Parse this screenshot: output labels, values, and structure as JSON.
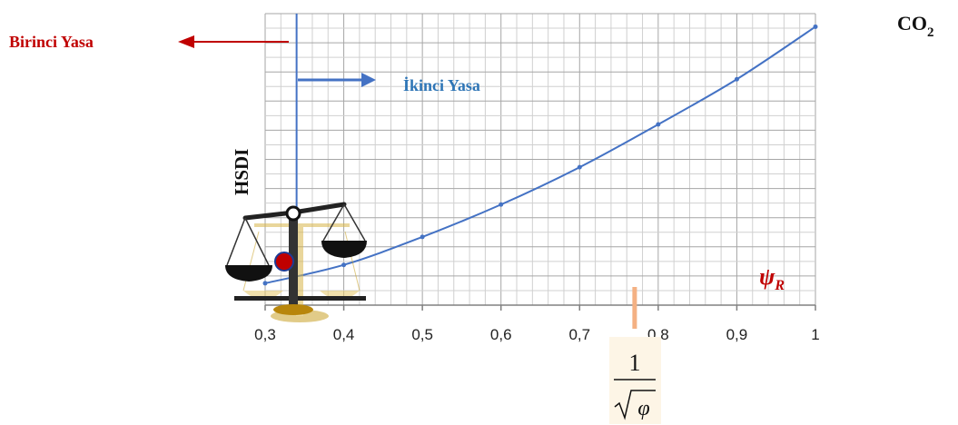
{
  "chart_data": {
    "type": "line",
    "x": [
      0.3,
      0.4,
      0.5,
      0.6,
      0.7,
      0.8,
      0.9,
      1.0
    ],
    "y": [
      0.075,
      0.138,
      0.234,
      0.345,
      0.473,
      0.62,
      0.775,
      0.955
    ],
    "xlim": [
      0.3,
      1.0
    ],
    "ylim": [
      0,
      1.0
    ],
    "xticks": [
      "0,3",
      "0,4",
      "0,5",
      "0,6",
      "0,7",
      "0,8",
      "0,9",
      "1"
    ],
    "grid": true,
    "line_color": "#4472C4",
    "ylabel": "HSDI",
    "xlabel_symbol": "ψ",
    "xlabel_subscript": "R",
    "xlabel_color": "#C00000",
    "top_right_label": "CO",
    "top_right_sub": "2",
    "vertical_line_x": 0.34,
    "marker_x": 0.77,
    "marker_color": "#F4B183",
    "marker_numerator": "1",
    "marker_denominator": "φ",
    "annotations": {
      "birinci": {
        "text": "Birinci Yasa",
        "color": "#C00000"
      },
      "ikinci": {
        "text": "İkinci Yasa",
        "color": "#2E75B6"
      }
    },
    "scale_icon": "balance-scale-icon"
  }
}
